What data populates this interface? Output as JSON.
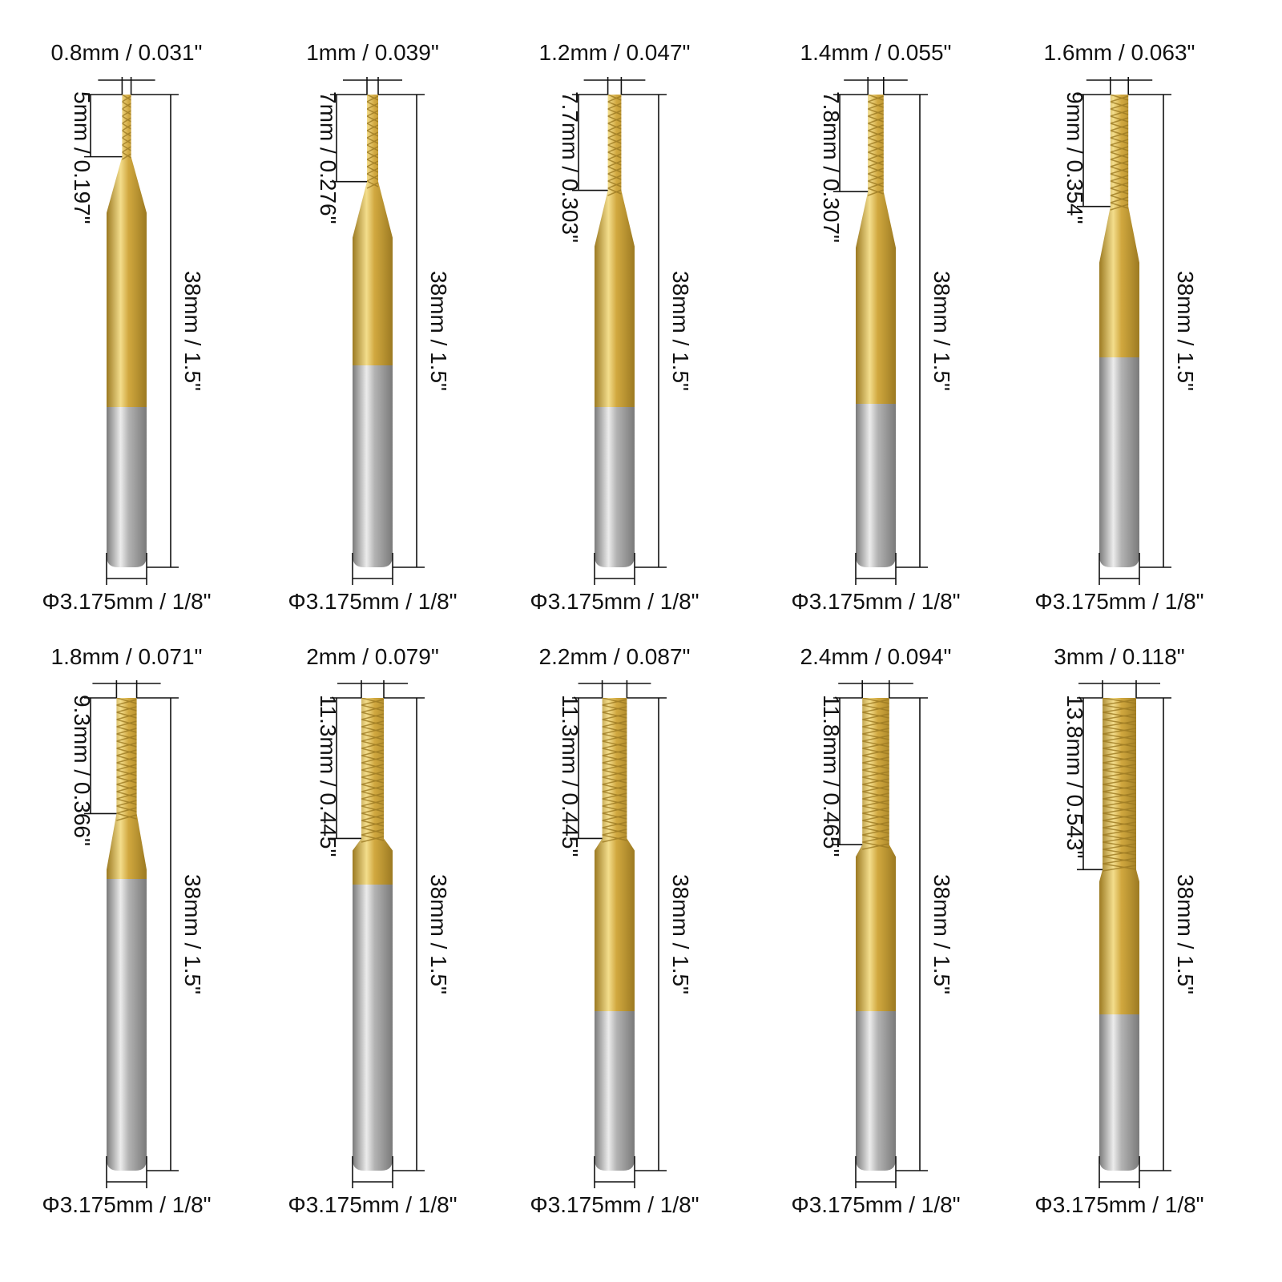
{
  "colors": {
    "coating": "#d1a83f",
    "coating_highlight": "#f3dd8c",
    "coating_shadow": "#9c7a22",
    "shank": "#b3b3b3",
    "shank_highlight": "#ececec",
    "shank_shadow": "#7a7a7a",
    "line": "#111111"
  },
  "bits": [
    {
      "tip": "0.8mm / 0.031\"",
      "flute": "5mm / 0.197\"",
      "overall": "38mm / 1.5\"",
      "shank": "Φ3.175mm / 1/8\"",
      "diameter_mm": 0.8,
      "flute_mm": 5
    },
    {
      "tip": "1mm / 0.039\"",
      "flute": "7mm / 0.276\"",
      "overall": "38mm / 1.5\"",
      "shank": "Φ3.175mm / 1/8\"",
      "diameter_mm": 1.0,
      "flute_mm": 7
    },
    {
      "tip": "1.2mm / 0.047\"",
      "flute": "7.7mm / 0.303\"",
      "overall": "38mm / 1.5\"",
      "shank": "Φ3.175mm / 1/8\"",
      "diameter_mm": 1.2,
      "flute_mm": 7.7
    },
    {
      "tip": "1.4mm / 0.055\"",
      "flute": "7.8mm / 0.307\"",
      "overall": "38mm / 1.5\"",
      "shank": "Φ3.175mm / 1/8\"",
      "diameter_mm": 1.4,
      "flute_mm": 7.8
    },
    {
      "tip": "1.6mm / 0.063\"",
      "flute": "9mm / 0.354\"",
      "overall": "38mm / 1.5\"",
      "shank": "Φ3.175mm / 1/8\"",
      "diameter_mm": 1.6,
      "flute_mm": 9
    },
    {
      "tip": "1.8mm / 0.071\"",
      "flute": "9.3mm / 0.366\"",
      "overall": "38mm / 1.5\"",
      "shank": "Φ3.175mm / 1/8\"",
      "diameter_mm": 1.8,
      "flute_mm": 9.3
    },
    {
      "tip": "2mm / 0.079\"",
      "flute": "11.3mm / 0.445\"",
      "overall": "38mm / 1.5\"",
      "shank": "Φ3.175mm / 1/8\"",
      "diameter_mm": 2.0,
      "flute_mm": 11.3
    },
    {
      "tip": "2.2mm / 0.087\"",
      "flute": "11.3mm / 0.445\"",
      "overall": "38mm / 1.5\"",
      "shank": "Φ3.175mm / 1/8\"",
      "diameter_mm": 2.2,
      "flute_mm": 11.3
    },
    {
      "tip": "2.4mm / 0.094\"",
      "flute": "11.8mm / 0.465\"",
      "overall": "38mm / 1.5\"",
      "shank": "Φ3.175mm / 1/8\"",
      "diameter_mm": 2.4,
      "flute_mm": 11.8
    },
    {
      "tip": "3mm / 0.118\"",
      "flute": "13.8mm / 0.543\"",
      "overall": "38mm / 1.5\"",
      "shank": "Φ3.175mm / 1/8\"",
      "diameter_mm": 3.0,
      "flute_mm": 13.8
    }
  ]
}
